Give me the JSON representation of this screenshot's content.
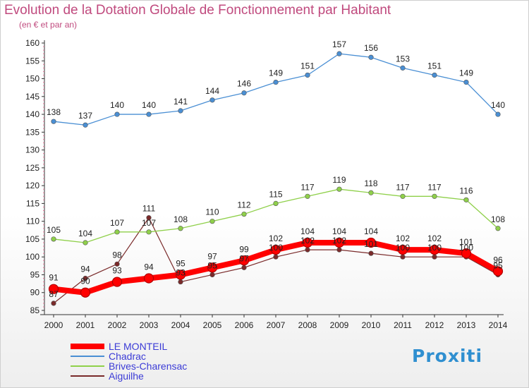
{
  "header": {
    "title": "Evolution de la Dotation Globale de Fonctionnement par Habitant",
    "subtitle": "(en € et par an)"
  },
  "logo": {
    "text": "Proxiti"
  },
  "chart_data": {
    "type": "line",
    "title": "Evolution de la Dotation Globale de Fonctionnement par Habitant",
    "subtitle": "(en € et par an)",
    "x": [
      2000,
      2001,
      2002,
      2003,
      2004,
      2005,
      2006,
      2007,
      2008,
      2009,
      2010,
      2011,
      2012,
      2013,
      2014
    ],
    "ylim": [
      85,
      160
    ],
    "yticks": [
      85,
      90,
      95,
      100,
      105,
      110,
      115,
      120,
      125,
      130,
      135,
      140,
      145,
      150,
      155,
      160
    ],
    "grid": false,
    "legend_position": "bottom-left",
    "series": [
      {
        "name": "LE MONTEIL",
        "color": "#ff0000",
        "values": [
          91,
          90,
          93,
          94,
          95,
          97,
          99,
          102,
          104,
          104,
          104,
          102,
          102,
          101,
          96
        ]
      },
      {
        "name": "Chadrac",
        "color": "#4a8fd4",
        "values": [
          138,
          137,
          140,
          140,
          141,
          144,
          146,
          149,
          151,
          157,
          156,
          153,
          151,
          149,
          140
        ]
      },
      {
        "name": "Brives-Charensac",
        "color": "#8fd04a",
        "values": [
          105,
          104,
          107,
          107,
          108,
          110,
          112,
          115,
          117,
          119,
          118,
          117,
          117,
          116,
          108
        ]
      },
      {
        "name": "Aiguilhe",
        "color": "#7a2a2a",
        "values": [
          87,
          94,
          98,
          111,
          93,
          95,
          97,
          100,
          102,
          102,
          101,
          100,
          100,
          100,
          95
        ]
      }
    ]
  }
}
